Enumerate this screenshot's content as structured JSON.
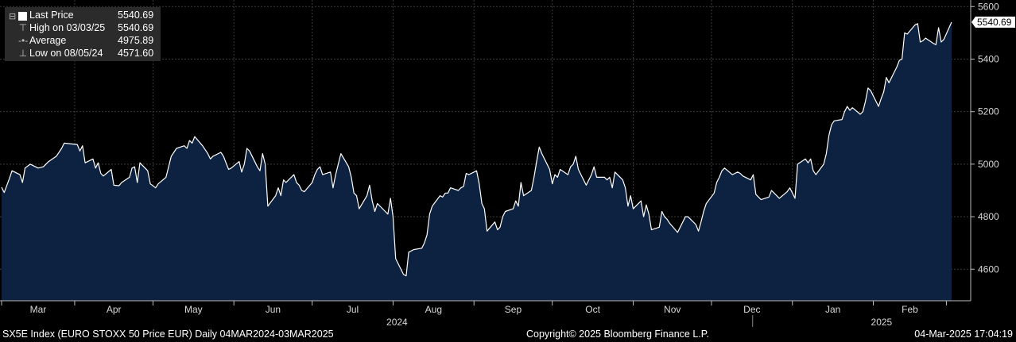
{
  "legend": {
    "items": [
      {
        "label": "Last Price",
        "value": "5540.69"
      },
      {
        "label": "High on 03/03/25",
        "value": "5540.69"
      },
      {
        "label": "Average",
        "value": "4975.89"
      },
      {
        "label": "Low on 08/05/24",
        "value": "4571.60"
      }
    ]
  },
  "footer": {
    "left": "SX5E Index (EURO STOXX 50 Price EUR)  Daily 04MAR2024-03MAR2025",
    "center": "Copyright© 2025 Bloomberg Finance L.P.",
    "right": "04-Mar-2025 17:04:19"
  },
  "chart_data": {
    "type": "area",
    "ylim": [
      4480,
      5625
    ],
    "yticks": [
      4600,
      4800,
      5000,
      5200,
      5400,
      5600
    ],
    "last_value_label": "5540.69",
    "months": [
      "Mar",
      "Apr",
      "May",
      "Jun",
      "Jul",
      "Aug",
      "Sep",
      "Oct",
      "Nov",
      "Dec",
      "Jan",
      "Feb"
    ],
    "years": [
      "2024",
      "2025"
    ],
    "line_color": "#ffffff",
    "fill_color": "#0d2240",
    "grid": true,
    "legend_position": "top-left",
    "x_start": "2024-03-04",
    "x_end": "2025-03-03",
    "series": [
      {
        "points": [
          [
            "2024-03-04",
            4912
          ],
          [
            "2024-03-05",
            4892
          ],
          [
            "2024-03-07",
            4945
          ],
          [
            "2024-03-08",
            4975
          ],
          [
            "2024-03-11",
            4960
          ],
          [
            "2024-03-12",
            4930
          ],
          [
            "2024-03-13",
            4985
          ],
          [
            "2024-03-15",
            5000
          ],
          [
            "2024-03-18",
            4985
          ],
          [
            "2024-03-20",
            4990
          ],
          [
            "2024-03-22",
            5010
          ],
          [
            "2024-03-25",
            5030
          ],
          [
            "2024-03-27",
            5060
          ],
          [
            "2024-03-28",
            5080
          ],
          [
            "2024-04-02",
            5075
          ],
          [
            "2024-04-03",
            5050
          ],
          [
            "2024-04-04",
            5070
          ],
          [
            "2024-04-05",
            5005
          ],
          [
            "2024-04-08",
            5020
          ],
          [
            "2024-04-09",
            4985
          ],
          [
            "2024-04-10",
            5005
          ],
          [
            "2024-04-11",
            4965
          ],
          [
            "2024-04-12",
            4955
          ],
          [
            "2024-04-15",
            4980
          ],
          [
            "2024-04-16",
            4920
          ],
          [
            "2024-04-18",
            4918
          ],
          [
            "2024-04-19",
            4930
          ],
          [
            "2024-04-22",
            4950
          ],
          [
            "2024-04-23",
            4985
          ],
          [
            "2024-04-24",
            4990
          ],
          [
            "2024-04-25",
            4930
          ],
          [
            "2024-04-26",
            5005
          ],
          [
            "2024-04-29",
            4975
          ],
          [
            "2024-04-30",
            4925
          ],
          [
            "2024-05-02",
            4910
          ],
          [
            "2024-05-03",
            4925
          ],
          [
            "2024-05-06",
            4950
          ],
          [
            "2024-05-07",
            4990
          ],
          [
            "2024-05-08",
            5030
          ],
          [
            "2024-05-10",
            5060
          ],
          [
            "2024-05-13",
            5070
          ],
          [
            "2024-05-14",
            5060
          ],
          [
            "2024-05-15",
            5090
          ],
          [
            "2024-05-16",
            5080
          ],
          [
            "2024-05-17",
            5105
          ],
          [
            "2024-05-20",
            5070
          ],
          [
            "2024-05-21",
            5055
          ],
          [
            "2024-05-22",
            5040
          ],
          [
            "2024-05-23",
            5020
          ],
          [
            "2024-05-24",
            5030
          ],
          [
            "2024-05-27",
            5045
          ],
          [
            "2024-05-28",
            5030
          ],
          [
            "2024-05-29",
            5005
          ],
          [
            "2024-05-30",
            4980
          ],
          [
            "2024-05-31",
            4985
          ],
          [
            "2024-06-03",
            5010
          ],
          [
            "2024-06-04",
            4970
          ],
          [
            "2024-06-05",
            5000
          ],
          [
            "2024-06-06",
            5060
          ],
          [
            "2024-06-07",
            5050
          ],
          [
            "2024-06-10",
            4990
          ],
          [
            "2024-06-11",
            4975
          ],
          [
            "2024-06-12",
            5040
          ],
          [
            "2024-06-13",
            5000
          ],
          [
            "2024-06-14",
            4840
          ],
          [
            "2024-06-17",
            4880
          ],
          [
            "2024-06-18",
            4910
          ],
          [
            "2024-06-19",
            4880
          ],
          [
            "2024-06-20",
            4940
          ],
          [
            "2024-06-21",
            4930
          ],
          [
            "2024-06-24",
            4960
          ],
          [
            "2024-06-25",
            4930
          ],
          [
            "2024-06-26",
            4920
          ],
          [
            "2024-06-27",
            4900
          ],
          [
            "2024-06-28",
            4895
          ],
          [
            "2024-07-01",
            4930
          ],
          [
            "2024-07-02",
            4960
          ],
          [
            "2024-07-03",
            4980
          ],
          [
            "2024-07-04",
            4990
          ],
          [
            "2024-07-05",
            4960
          ],
          [
            "2024-07-08",
            4970
          ],
          [
            "2024-07-09",
            4910
          ],
          [
            "2024-07-10",
            4960
          ],
          [
            "2024-07-11",
            5000
          ],
          [
            "2024-07-12",
            5040
          ],
          [
            "2024-07-15",
            4990
          ],
          [
            "2024-07-16",
            4950
          ],
          [
            "2024-07-17",
            4890
          ],
          [
            "2024-07-18",
            4880
          ],
          [
            "2024-07-19",
            4830
          ],
          [
            "2024-07-22",
            4880
          ],
          [
            "2024-07-23",
            4920
          ],
          [
            "2024-07-24",
            4860
          ],
          [
            "2024-07-25",
            4820
          ],
          [
            "2024-07-26",
            4850
          ],
          [
            "2024-07-29",
            4820
          ],
          [
            "2024-07-30",
            4810
          ],
          [
            "2024-07-31",
            4870
          ],
          [
            "2024-08-01",
            4800
          ],
          [
            "2024-08-02",
            4640
          ],
          [
            "2024-08-05",
            4580
          ],
          [
            "2024-08-06",
            4575
          ],
          [
            "2024-08-07",
            4665
          ],
          [
            "2024-08-08",
            4670
          ],
          [
            "2024-08-09",
            4675
          ],
          [
            "2024-08-12",
            4680
          ],
          [
            "2024-08-13",
            4700
          ],
          [
            "2024-08-14",
            4730
          ],
          [
            "2024-08-15",
            4810
          ],
          [
            "2024-08-16",
            4840
          ],
          [
            "2024-08-19",
            4880
          ],
          [
            "2024-08-20",
            4875
          ],
          [
            "2024-08-21",
            4890
          ],
          [
            "2024-08-22",
            4890
          ],
          [
            "2024-08-23",
            4910
          ],
          [
            "2024-08-26",
            4900
          ],
          [
            "2024-08-27",
            4910
          ],
          [
            "2024-08-28",
            4915
          ],
          [
            "2024-08-29",
            4965
          ],
          [
            "2024-08-30",
            4960
          ],
          [
            "2024-09-02",
            4975
          ],
          [
            "2024-09-03",
            4925
          ],
          [
            "2024-09-04",
            4850
          ],
          [
            "2024-09-05",
            4830
          ],
          [
            "2024-09-06",
            4745
          ],
          [
            "2024-09-09",
            4780
          ],
          [
            "2024-09-10",
            4750
          ],
          [
            "2024-09-11",
            4760
          ],
          [
            "2024-09-12",
            4800
          ],
          [
            "2024-09-13",
            4820
          ],
          [
            "2024-09-16",
            4830
          ],
          [
            "2024-09-17",
            4860
          ],
          [
            "2024-09-18",
            4840
          ],
          [
            "2024-09-19",
            4930
          ],
          [
            "2024-09-20",
            4880
          ],
          [
            "2024-09-23",
            4900
          ],
          [
            "2024-09-24",
            4950
          ],
          [
            "2024-09-25",
            5010
          ],
          [
            "2024-09-26",
            5065
          ],
          [
            "2024-09-27",
            5040
          ],
          [
            "2024-09-30",
            4980
          ],
          [
            "2024-10-01",
            4925
          ],
          [
            "2024-10-02",
            4960
          ],
          [
            "2024-10-03",
            4950
          ],
          [
            "2024-10-04",
            4980
          ],
          [
            "2024-10-07",
            4960
          ],
          [
            "2024-10-08",
            4990
          ],
          [
            "2024-10-09",
            5000
          ],
          [
            "2024-10-10",
            5030
          ],
          [
            "2024-10-11",
            4980
          ],
          [
            "2024-10-14",
            4920
          ],
          [
            "2024-10-15",
            4940
          ],
          [
            "2024-10-16",
            4960
          ],
          [
            "2024-10-17",
            4990
          ],
          [
            "2024-10-18",
            4950
          ],
          [
            "2024-10-21",
            4950
          ],
          [
            "2024-10-22",
            4940
          ],
          [
            "2024-10-23",
            4950
          ],
          [
            "2024-10-24",
            4910
          ],
          [
            "2024-10-25",
            4970
          ],
          [
            "2024-10-28",
            4940
          ],
          [
            "2024-10-29",
            4910
          ],
          [
            "2024-10-30",
            4840
          ],
          [
            "2024-10-31",
            4880
          ],
          [
            "2024-11-01",
            4830
          ],
          [
            "2024-11-04",
            4860
          ],
          [
            "2024-11-05",
            4800
          ],
          [
            "2024-11-06",
            4845
          ],
          [
            "2024-11-07",
            4810
          ],
          [
            "2024-11-08",
            4750
          ],
          [
            "2024-11-11",
            4760
          ],
          [
            "2024-11-12",
            4820
          ],
          [
            "2024-11-13",
            4800
          ],
          [
            "2024-11-14",
            4790
          ],
          [
            "2024-11-15",
            4775
          ],
          [
            "2024-11-18",
            4740
          ],
          [
            "2024-11-19",
            4760
          ],
          [
            "2024-11-20",
            4780
          ],
          [
            "2024-11-21",
            4800
          ],
          [
            "2024-11-22",
            4800
          ],
          [
            "2024-11-25",
            4770
          ],
          [
            "2024-11-26",
            4745
          ],
          [
            "2024-11-27",
            4780
          ],
          [
            "2024-11-28",
            4820
          ],
          [
            "2024-11-29",
            4850
          ],
          [
            "2024-12-02",
            4890
          ],
          [
            "2024-12-03",
            4930
          ],
          [
            "2024-12-04",
            4950
          ],
          [
            "2024-12-05",
            4975
          ],
          [
            "2024-12-06",
            4985
          ],
          [
            "2024-12-09",
            4960
          ],
          [
            "2024-12-10",
            4965
          ],
          [
            "2024-12-11",
            4970
          ],
          [
            "2024-12-12",
            4965
          ],
          [
            "2024-12-13",
            4955
          ],
          [
            "2024-12-16",
            4940
          ],
          [
            "2024-12-17",
            4960
          ],
          [
            "2024-12-18",
            4885
          ],
          [
            "2024-12-19",
            4875
          ],
          [
            "2024-12-20",
            4865
          ],
          [
            "2024-12-23",
            4875
          ],
          [
            "2024-12-24",
            4900
          ],
          [
            "2024-12-27",
            4870
          ],
          [
            "2024-12-30",
            4895
          ],
          [
            "2024-12-31",
            4910
          ],
          [
            "2025-01-02",
            4870
          ],
          [
            "2025-01-03",
            5000
          ],
          [
            "2025-01-06",
            5020
          ],
          [
            "2025-01-07",
            5005
          ],
          [
            "2025-01-08",
            5020
          ],
          [
            "2025-01-09",
            4975
          ],
          [
            "2025-01-10",
            4960
          ],
          [
            "2025-01-13",
            5000
          ],
          [
            "2025-01-14",
            5040
          ],
          [
            "2025-01-15",
            5110
          ],
          [
            "2025-01-16",
            5150
          ],
          [
            "2025-01-17",
            5165
          ],
          [
            "2025-01-20",
            5170
          ],
          [
            "2025-01-21",
            5200
          ],
          [
            "2025-01-22",
            5220
          ],
          [
            "2025-01-23",
            5205
          ],
          [
            "2025-01-24",
            5215
          ],
          [
            "2025-01-27",
            5190
          ],
          [
            "2025-01-28",
            5200
          ],
          [
            "2025-01-29",
            5240
          ],
          [
            "2025-01-30",
            5290
          ],
          [
            "2025-01-31",
            5280
          ],
          [
            "2025-02-03",
            5220
          ],
          [
            "2025-02-04",
            5250
          ],
          [
            "2025-02-05",
            5275
          ],
          [
            "2025-02-06",
            5330
          ],
          [
            "2025-02-07",
            5310
          ],
          [
            "2025-02-10",
            5370
          ],
          [
            "2025-02-11",
            5395
          ],
          [
            "2025-02-12",
            5400
          ],
          [
            "2025-02-13",
            5500
          ],
          [
            "2025-02-14",
            5495
          ],
          [
            "2025-02-17",
            5530
          ],
          [
            "2025-02-18",
            5535
          ],
          [
            "2025-02-19",
            5465
          ],
          [
            "2025-02-20",
            5470
          ],
          [
            "2025-02-21",
            5480
          ],
          [
            "2025-02-24",
            5460
          ],
          [
            "2025-02-25",
            5455
          ],
          [
            "2025-02-26",
            5520
          ],
          [
            "2025-02-27",
            5465
          ],
          [
            "2025-02-28",
            5475
          ],
          [
            "2025-03-03",
            5540.69
          ]
        ]
      }
    ]
  }
}
